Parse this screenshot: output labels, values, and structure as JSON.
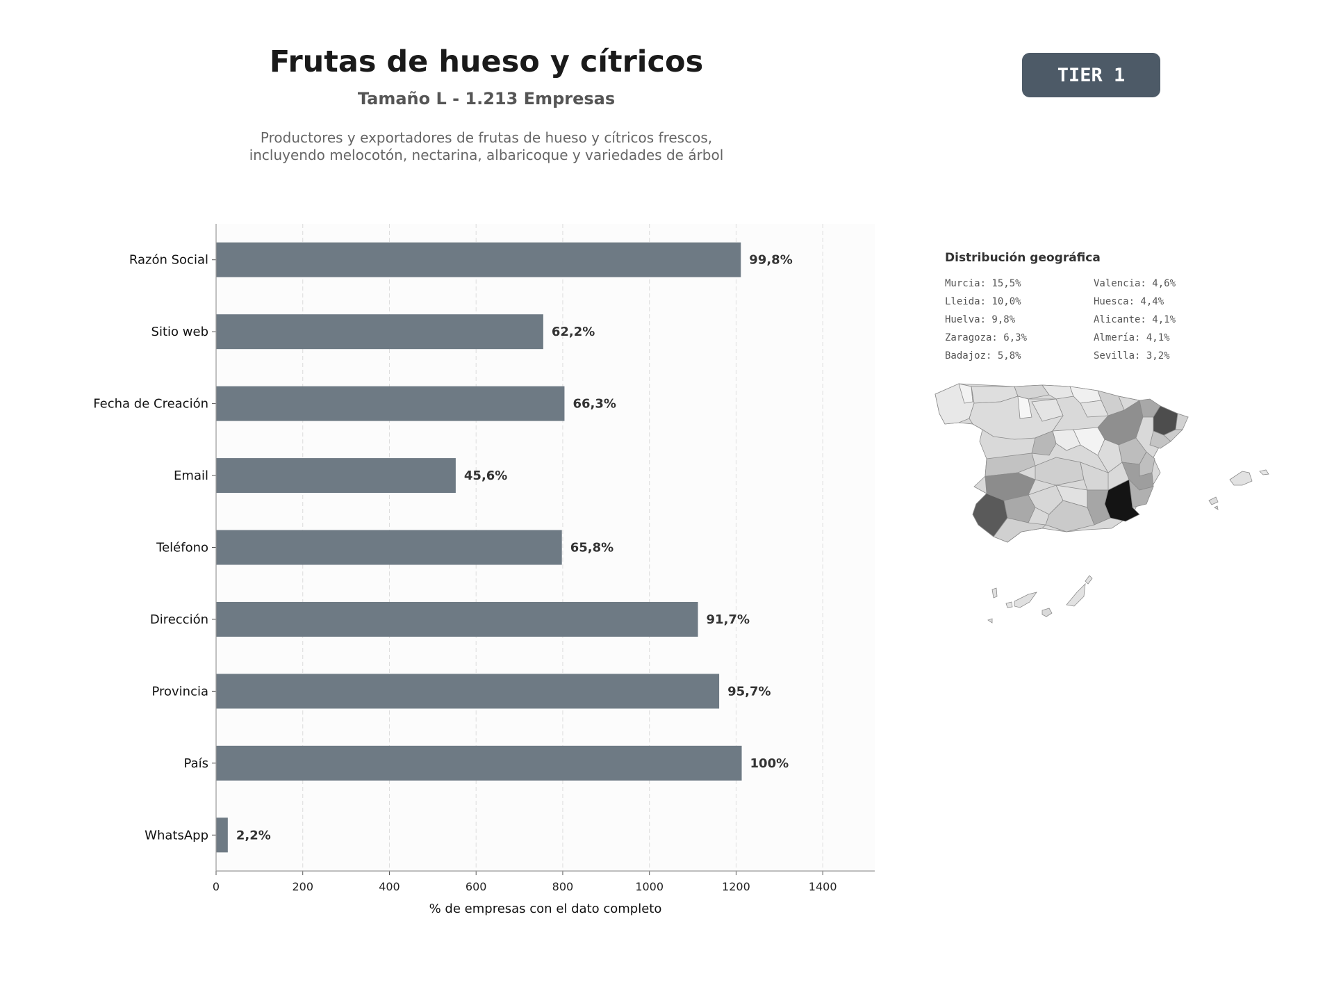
{
  "header": {
    "title": "Frutas de hueso y cítricos",
    "subtitle": "Tamaño L - 1.213 Empresas",
    "description_line1": "Productores y exportadores de frutas de hueso y cítricos frescos,",
    "description_line2": "incluyendo melocotón, nectarina, albaricoque y variedades de árbol"
  },
  "badge": {
    "label": "TIER 1",
    "color": "#4d5a67"
  },
  "chart_data": {
    "type": "bar",
    "orientation": "horizontal",
    "categories": [
      "Razón Social",
      "Sitio web",
      "Fecha de Creación",
      "Email",
      "Teléfono",
      "Dirección",
      "Provincia",
      "País",
      "WhatsApp"
    ],
    "values": [
      1211,
      755,
      804,
      553,
      798,
      1112,
      1161,
      1213,
      27
    ],
    "data_labels": [
      "99,8%",
      "62,2%",
      "66,3%",
      "45,6%",
      "65,8%",
      "91,7%",
      "95,7%",
      "100%",
      "2,2%"
    ],
    "xlabel": "% de empresas con el dato completo",
    "ylabel": "",
    "xlim": [
      0,
      1520
    ],
    "xticks": [
      0,
      200,
      400,
      600,
      800,
      1000,
      1200,
      1400
    ],
    "grid": "vertical dashed",
    "bar_color": "#6e7a84"
  },
  "geo": {
    "title": "Distribución geográfica",
    "col1": [
      "Murcia: 15,5%",
      "Lleida: 10,0%",
      "Huelva: 9,8%",
      "Zaragoza: 6,3%",
      "Badajoz: 5,8%"
    ],
    "col2": [
      "Valencia: 4,6%",
      "Huesca: 4,4%",
      "Alicante: 4,1%",
      "Almería: 4,1%",
      "Sevilla: 3,2%"
    ]
  }
}
